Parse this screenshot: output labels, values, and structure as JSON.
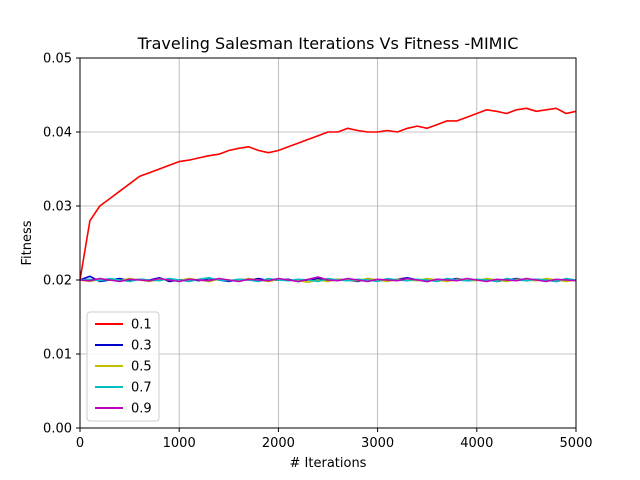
{
  "chart_data": {
    "type": "line",
    "title": "Traveling Salesman Iterations Vs Fitness -MIMIC",
    "xlabel": "# Iterations",
    "ylabel": "Fitness",
    "xlim": [
      0,
      5000
    ],
    "ylim": [
      0,
      0.05
    ],
    "xticks": [
      "0",
      "1000",
      "2000",
      "3000",
      "4000",
      "5000"
    ],
    "yticks": [
      "0.00",
      "0.01",
      "0.02",
      "0.03",
      "0.04",
      "0.05"
    ],
    "grid": true,
    "legend_position": "lower-left",
    "x": [
      0,
      100,
      200,
      300,
      400,
      500,
      600,
      700,
      800,
      900,
      1000,
      1100,
      1200,
      1300,
      1400,
      1500,
      1600,
      1700,
      1800,
      1900,
      2000,
      2100,
      2200,
      2300,
      2400,
      2500,
      2600,
      2700,
      2800,
      2900,
      3000,
      3100,
      3200,
      3300,
      3400,
      3500,
      3600,
      3700,
      3800,
      3900,
      4000,
      4100,
      4200,
      4300,
      4400,
      4500,
      4600,
      4700,
      4800,
      4900,
      5000
    ],
    "series": [
      {
        "name": "0.1",
        "color": "#ff0000",
        "values": [
          0.02,
          0.028,
          0.03,
          0.031,
          0.032,
          0.033,
          0.034,
          0.0345,
          0.035,
          0.0355,
          0.036,
          0.0362,
          0.0365,
          0.0368,
          0.037,
          0.0375,
          0.0378,
          0.038,
          0.0375,
          0.0372,
          0.0375,
          0.038,
          0.0385,
          0.039,
          0.0395,
          0.04,
          0.04,
          0.0405,
          0.0402,
          0.04,
          0.04,
          0.0402,
          0.04,
          0.0405,
          0.0408,
          0.0405,
          0.041,
          0.0415,
          0.0415,
          0.042,
          0.0425,
          0.043,
          0.0428,
          0.0425,
          0.043,
          0.0432,
          0.0428,
          0.043,
          0.0432,
          0.0425,
          0.0428
        ]
      },
      {
        "name": "0.3",
        "color": "#0000cc",
        "values": [
          0.02,
          0.0205,
          0.0198,
          0.02,
          0.0202,
          0.0199,
          0.0201,
          0.02,
          0.0203,
          0.0198,
          0.02,
          0.0201,
          0.0199,
          0.0202,
          0.02,
          0.0198,
          0.0201,
          0.02,
          0.0202,
          0.0199,
          0.02,
          0.0201,
          0.0198,
          0.02,
          0.0202,
          0.0199,
          0.0201,
          0.02,
          0.0198,
          0.0202,
          0.02,
          0.0199,
          0.0201,
          0.0203,
          0.02,
          0.0198,
          0.0201,
          0.02,
          0.0202,
          0.0199,
          0.02,
          0.0201,
          0.0198,
          0.02,
          0.0202,
          0.0199,
          0.0201,
          0.02,
          0.0198,
          0.0201,
          0.02
        ]
      },
      {
        "name": "0.5",
        "color": "#bfbf00",
        "values": [
          0.02,
          0.0198,
          0.0201,
          0.02,
          0.0199,
          0.0202,
          0.02,
          0.0198,
          0.0201,
          0.02,
          0.0199,
          0.0202,
          0.02,
          0.0198,
          0.0201,
          0.02,
          0.0199,
          0.0202,
          0.02,
          0.0198,
          0.0201,
          0.02,
          0.0199,
          0.0197,
          0.02,
          0.0198,
          0.0201,
          0.02,
          0.0199,
          0.0202,
          0.02,
          0.0198,
          0.0201,
          0.02,
          0.0199,
          0.0202,
          0.02,
          0.0198,
          0.0201,
          0.02,
          0.0199,
          0.0202,
          0.02,
          0.0198,
          0.0201,
          0.02,
          0.0199,
          0.0202,
          0.02,
          0.0198,
          0.02
        ]
      },
      {
        "name": "0.7",
        "color": "#00bfbf",
        "values": [
          0.02,
          0.0201,
          0.0199,
          0.0202,
          0.02,
          0.0198,
          0.0201,
          0.02,
          0.0199,
          0.0202,
          0.02,
          0.0198,
          0.0201,
          0.0203,
          0.02,
          0.0199,
          0.0201,
          0.02,
          0.0198,
          0.0202,
          0.02,
          0.0199,
          0.0201,
          0.02,
          0.0198,
          0.0202,
          0.02,
          0.0199,
          0.0201,
          0.02,
          0.0198,
          0.0202,
          0.02,
          0.0199,
          0.0201,
          0.02,
          0.0198,
          0.0202,
          0.02,
          0.0199,
          0.0201,
          0.02,
          0.0198,
          0.0202,
          0.02,
          0.0199,
          0.0201,
          0.02,
          0.0198,
          0.0202,
          0.02
        ]
      },
      {
        "name": "0.9",
        "color": "#bf00bf",
        "values": [
          0.02,
          0.0199,
          0.0202,
          0.02,
          0.0198,
          0.0201,
          0.02,
          0.0199,
          0.0202,
          0.02,
          0.0198,
          0.0201,
          0.02,
          0.0199,
          0.0202,
          0.02,
          0.0198,
          0.0201,
          0.02,
          0.0199,
          0.0202,
          0.02,
          0.0198,
          0.0201,
          0.0204,
          0.02,
          0.0199,
          0.0202,
          0.02,
          0.0198,
          0.0201,
          0.02,
          0.0199,
          0.0202,
          0.02,
          0.0198,
          0.0201,
          0.02,
          0.0199,
          0.0202,
          0.02,
          0.0198,
          0.0201,
          0.02,
          0.0199,
          0.0202,
          0.02,
          0.0198,
          0.0201,
          0.02,
          0.0199
        ]
      }
    ]
  }
}
